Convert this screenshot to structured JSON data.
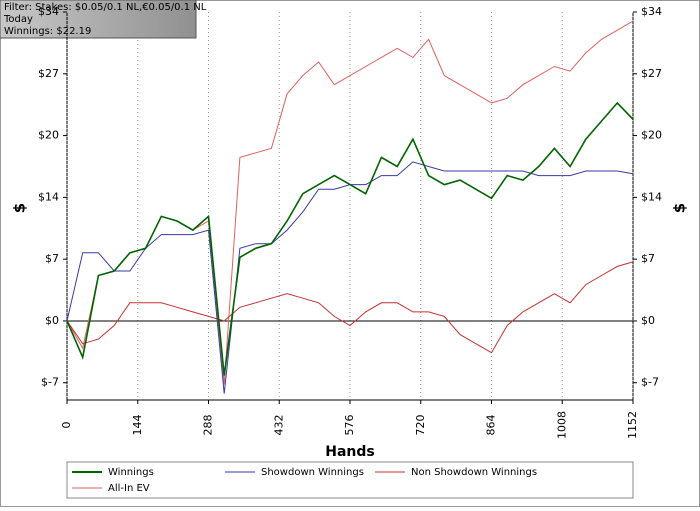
{
  "chart_data": {
    "type": "line",
    "annotations": [
      "Filter: Stakes: $0.05/0.1 NL,€0.05/0.1 NL",
      "Today",
      "Winnings: $22.19"
    ],
    "xlabel": "Hands",
    "ylabel": "$",
    "x": [
      0,
      32,
      64,
      96,
      128,
      160,
      192,
      224,
      256,
      288,
      320,
      352,
      384,
      416,
      448,
      480,
      512,
      544,
      576,
      608,
      640,
      672,
      704,
      736,
      768,
      800,
      832,
      864,
      896,
      928,
      960,
      992,
      1024,
      1056,
      1088,
      1120,
      1152
    ],
    "series": [
      {
        "name": "Winnings",
        "color": "#006400",
        "values": [
          0,
          -4,
          5,
          5.5,
          7.5,
          8,
          11.5,
          11,
          10,
          11.5,
          -6,
          7,
          8,
          8.5,
          11,
          14,
          15,
          16,
          15,
          14,
          18,
          17,
          20,
          16,
          15,
          15.5,
          14.5,
          13.5,
          16,
          15.5,
          17,
          19,
          17,
          20,
          22,
          24,
          22.19
        ]
      },
      {
        "name": "Showdown Winnings",
        "color": "#3a3aa8",
        "values": [
          0,
          7.5,
          7.5,
          5.5,
          5.5,
          8,
          9.5,
          9.5,
          9.5,
          10,
          -8,
          8,
          8.5,
          8.5,
          10,
          12,
          14.5,
          14.5,
          15,
          15,
          16,
          16,
          17.5,
          17,
          16.5,
          16.5,
          16.5,
          16.5,
          16.5,
          16.5,
          16,
          16,
          16,
          16.5,
          16.5,
          16.5,
          16.2
        ]
      },
      {
        "name": "Non Showdown Winnings",
        "color": "#c83030",
        "values": [
          0,
          -2.5,
          -2,
          -0.5,
          2,
          2,
          2,
          1.5,
          1,
          0.5,
          0,
          1.5,
          2,
          2.5,
          3,
          2.5,
          2,
          0.5,
          -0.5,
          1,
          2,
          2,
          1,
          1,
          0.5,
          -1.5,
          -2.5,
          -3.5,
          -0.5,
          1,
          2,
          3,
          2,
          4,
          5,
          6,
          6.5
        ]
      },
      {
        "name": "All-In EV",
        "color": "#e06060",
        "values": [
          0,
          -3,
          5,
          5.5,
          7.5,
          8,
          11.5,
          11,
          10,
          11,
          -7,
          18,
          18.5,
          19,
          25,
          27,
          28.5,
          26,
          27,
          28,
          29,
          30,
          29,
          31,
          27,
          26,
          25,
          24,
          24.5,
          26,
          27,
          28,
          27.5,
          29.5,
          31,
          32,
          33
        ]
      }
    ],
    "xlim": [
      0,
      1152
    ],
    "xticks": [
      0,
      144,
      288,
      432,
      576,
      720,
      864,
      1008,
      1152
    ],
    "ylim": [
      -8.7,
      34
    ],
    "yticks": [
      {
        "value": -6.8,
        "label": "$-7"
      },
      {
        "value": 0,
        "label": "$0"
      },
      {
        "value": 6.8,
        "label": "$7"
      },
      {
        "value": 13.6,
        "label": "$14"
      },
      {
        "value": 20.4,
        "label": "$20"
      },
      {
        "value": 27.2,
        "label": "$27"
      },
      {
        "value": 34,
        "label": "$34"
      }
    ],
    "grid": true
  }
}
